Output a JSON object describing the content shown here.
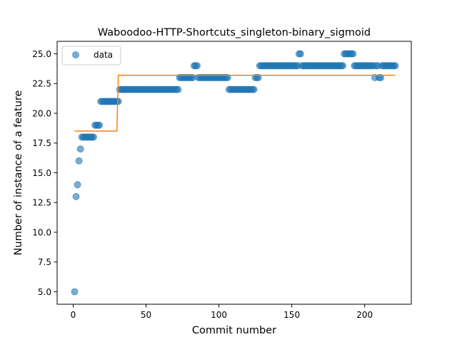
{
  "chart_data": {
    "type": "scatter",
    "title": "Waboodoo-HTTP-Shortcuts_singleton-binary_sigmoid",
    "xlabel": "Commit number",
    "ylabel": "Number of instance of a feature",
    "xlim": [
      -11,
      232
    ],
    "ylim": [
      3.95,
      26.05
    ],
    "xticks": [
      0,
      50,
      100,
      150,
      200
    ],
    "xtick_labels": [
      "0",
      "50",
      "100",
      "150",
      "200"
    ],
    "yticks": [
      5.0,
      7.5,
      10.0,
      12.5,
      15.0,
      17.5,
      20.0,
      22.5,
      25.0
    ],
    "ytick_labels": [
      "5.0",
      "7.5",
      "10.0",
      "12.5",
      "15.0",
      "17.5",
      "20.0",
      "22.5",
      "25.0"
    ],
    "grid": false,
    "legend_position": "top-left",
    "legend_entries": [
      "data"
    ],
    "series": [
      {
        "name": "data",
        "kind": "scatter",
        "color": "#1f77b4",
        "segments": [
          {
            "x_start": 1,
            "x_end": 1,
            "y": 5
          },
          {
            "x_start": 2,
            "x_end": 2,
            "y": 13
          },
          {
            "x_start": 3,
            "x_end": 3,
            "y": 14
          },
          {
            "x_start": 4,
            "x_end": 4,
            "y": 16
          },
          {
            "x_start": 5,
            "x_end": 5,
            "y": 17
          },
          {
            "x_start": 6,
            "x_end": 14,
            "y": 18
          },
          {
            "x_start": 15,
            "x_end": 18,
            "y": 19
          },
          {
            "x_start": 19,
            "x_end": 31,
            "y": 21
          },
          {
            "x_start": 32,
            "x_end": 72,
            "y": 22
          },
          {
            "x_start": 73,
            "x_end": 82,
            "y": 23
          },
          {
            "x_start": 83,
            "x_end": 85,
            "y": 24
          },
          {
            "x_start": 86,
            "x_end": 106,
            "y": 23
          },
          {
            "x_start": 107,
            "x_end": 124,
            "y": 22
          },
          {
            "x_start": 125,
            "x_end": 127,
            "y": 23
          },
          {
            "x_start": 128,
            "x_end": 154,
            "y": 24
          },
          {
            "x_start": 155,
            "x_end": 156,
            "y": 25
          },
          {
            "x_start": 157,
            "x_end": 185,
            "y": 24
          },
          {
            "x_start": 186,
            "x_end": 192,
            "y": 25
          },
          {
            "x_start": 193,
            "x_end": 206,
            "y": 24
          },
          {
            "x_start": 207,
            "x_end": 207,
            "y": 23
          },
          {
            "x_start": 208,
            "x_end": 209,
            "y": 24
          },
          {
            "x_start": 210,
            "x_end": 211,
            "y": 23
          },
          {
            "x_start": 212,
            "x_end": 221,
            "y": 24
          }
        ]
      },
      {
        "name": "",
        "kind": "line",
        "color": "#ff7f0e",
        "x": [
          1,
          30,
          31,
          221
        ],
        "y": [
          18.5,
          18.5,
          23.2,
          23.2
        ]
      }
    ]
  }
}
